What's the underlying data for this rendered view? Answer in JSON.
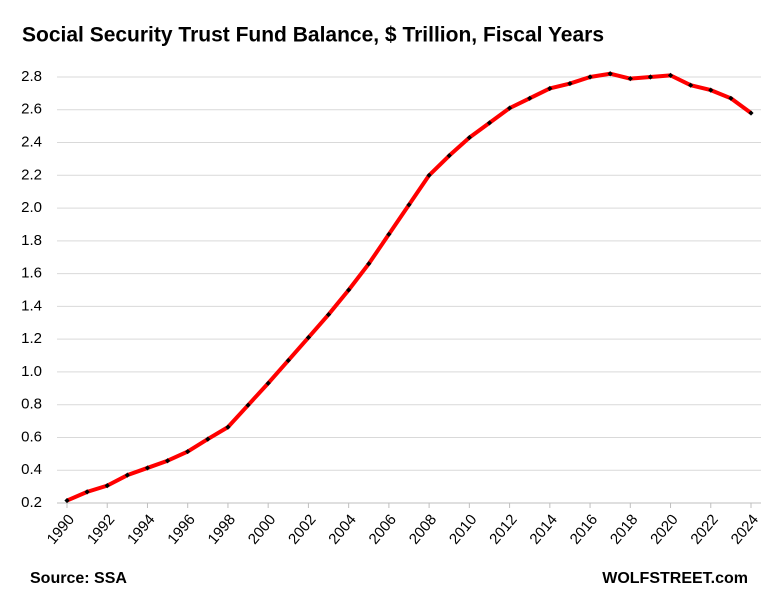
{
  "chart_data": {
    "type": "line",
    "title": "Social Security Trust Fund Balance, $ Trillion, Fiscal Years",
    "source": "Source: SSA",
    "credit": "WOLFSTREET.com",
    "x": [
      1990,
      1991,
      1992,
      1993,
      1994,
      1995,
      1996,
      1997,
      1998,
      1999,
      2000,
      2001,
      2002,
      2003,
      2004,
      2005,
      2006,
      2007,
      2008,
      2009,
      2010,
      2011,
      2012,
      2013,
      2014,
      2015,
      2016,
      2017,
      2018,
      2019,
      2020,
      2021,
      2022,
      2023,
      2024
    ],
    "values": [
      0.215,
      0.268,
      0.306,
      0.37,
      0.414,
      0.458,
      0.514,
      0.59,
      0.663,
      0.797,
      0.931,
      1.07,
      1.21,
      1.35,
      1.5,
      1.66,
      1.84,
      2.02,
      2.2,
      2.32,
      2.43,
      2.52,
      2.61,
      2.67,
      2.73,
      2.76,
      2.8,
      2.82,
      2.79,
      2.8,
      2.81,
      2.75,
      2.72,
      2.67,
      2.58
    ],
    "color": "#ff0000",
    "marker_color": "#000000",
    "xlim": [
      1990,
      2024
    ],
    "xticks": [
      1990,
      1992,
      1994,
      1996,
      1998,
      2000,
      2002,
      2004,
      2006,
      2008,
      2010,
      2012,
      2014,
      2016,
      2018,
      2020,
      2022,
      2024
    ],
    "ylim": [
      0.2,
      2.8
    ],
    "yticks": [
      0.2,
      0.4,
      0.6,
      0.8,
      {
        "value": 1,
        "label": "1.0"
      },
      1.2,
      1.4,
      1.6,
      1.8,
      {
        "value": 2,
        "label": "2.0"
      },
      2.2,
      2.4,
      2.6,
      2.8
    ],
    "grid": true
  }
}
